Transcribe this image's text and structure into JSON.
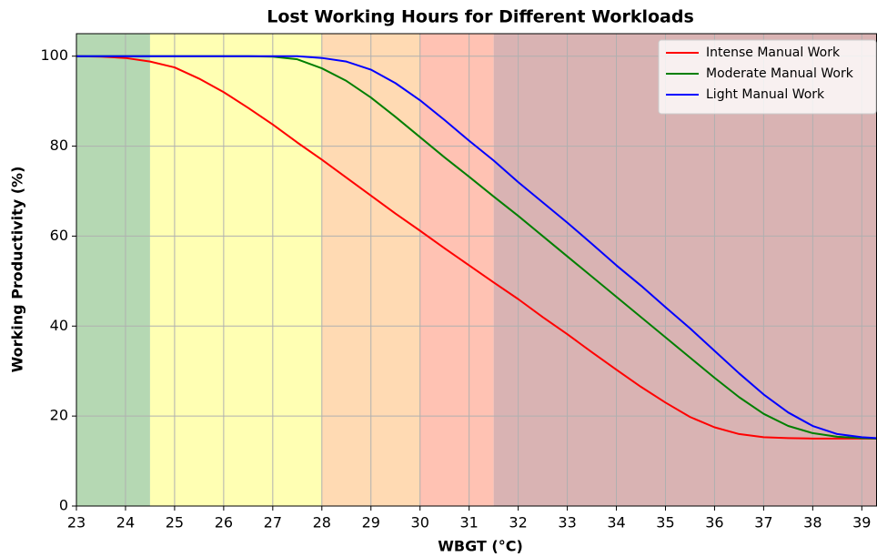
{
  "chart_data": {
    "type": "line",
    "title": "Lost Working Hours for Different Workloads",
    "xlabel": "WBGT (°C)",
    "ylabel": "Working Productivity (%)",
    "x": [
      23,
      23.5,
      24,
      24.5,
      25,
      25.5,
      26,
      26.5,
      27,
      27.5,
      28,
      28.5,
      29,
      29.5,
      30,
      30.5,
      31,
      31.5,
      32,
      32.5,
      33,
      33.5,
      34,
      34.5,
      35,
      35.5,
      36,
      36.5,
      37,
      37.5,
      38,
      38.5,
      39,
      39.3
    ],
    "series": [
      {
        "name": "Intense Manual Work",
        "color": "#ff0000",
        "values": [
          100,
          99.9,
          99.6,
          98.8,
          97.5,
          95,
          92,
          88.5,
          84.8,
          80.8,
          77,
          73,
          69,
          65,
          61.2,
          57.3,
          53.5,
          49.7,
          46,
          42,
          38.2,
          34.2,
          30.3,
          26.5,
          23,
          19.8,
          17.5,
          16,
          15.3,
          15.1,
          15,
          15,
          15,
          15
        ]
      },
      {
        "name": "Moderate Manual Work",
        "color": "#007f00",
        "values": [
          100,
          100,
          100,
          100,
          100,
          100,
          100,
          100,
          99.9,
          99.3,
          97.3,
          94.5,
          90.8,
          86.5,
          82,
          77.5,
          73.2,
          68.8,
          64.5,
          60,
          55.5,
          51,
          46.5,
          42,
          37.5,
          33,
          28.5,
          24.2,
          20.5,
          17.8,
          16.2,
          15.4,
          15.1,
          15
        ]
      },
      {
        "name": "Light Manual Work",
        "color": "#0000ff",
        "values": [
          100,
          100,
          100,
          100,
          100,
          100,
          100,
          100,
          100,
          100,
          99.6,
          98.8,
          97,
          94,
          90.2,
          85.8,
          81.2,
          76.8,
          72,
          67.5,
          63,
          58.3,
          53.5,
          49,
          44.2,
          39.5,
          34.5,
          29.5,
          24.8,
          20.8,
          17.8,
          16,
          15.3,
          15.1
        ]
      }
    ],
    "bands": [
      {
        "xmin": 23,
        "xmax": 24.5,
        "color": "#b5d8b3"
      },
      {
        "xmin": 24.5,
        "xmax": 28,
        "color": "#ffffb3"
      },
      {
        "xmin": 28,
        "xmax": 30,
        "color": "#ffdab3"
      },
      {
        "xmin": 30,
        "xmax": 31.5,
        "color": "#ffc2b3"
      },
      {
        "xmin": 31.5,
        "xmax": 39.3,
        "color": "#d9b3b3"
      }
    ],
    "xlim": [
      23,
      39.3
    ],
    "xticks": [
      23,
      24,
      25,
      26,
      27,
      28,
      29,
      30,
      31,
      32,
      33,
      34,
      35,
      36,
      37,
      38,
      39
    ],
    "ylim": [
      0,
      105
    ],
    "yticks": [
      0,
      20,
      40,
      60,
      80,
      100
    ],
    "grid": true,
    "legend": "upper right"
  }
}
